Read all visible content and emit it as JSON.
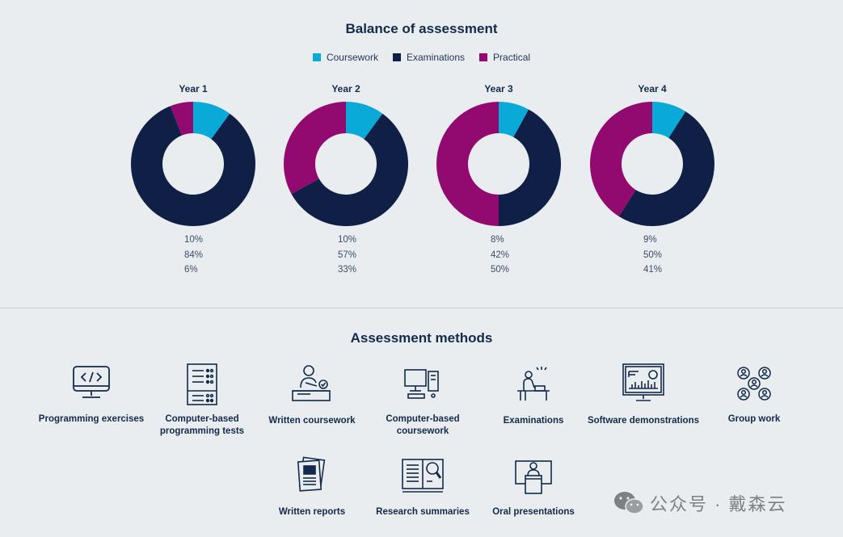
{
  "chart_data": {
    "type": "pie",
    "title": "Balance of assessment",
    "legend": [
      {
        "label": "Coursework",
        "color": "#0aaad8"
      },
      {
        "label": "Examinations",
        "color": "#0f1f45"
      },
      {
        "label": "Practical",
        "color": "#92096f"
      }
    ],
    "charts": [
      {
        "label": "Year 1",
        "values": [
          10,
          84,
          6
        ],
        "value_labels": [
          "10%",
          "84%",
          "6%"
        ]
      },
      {
        "label": "Year 2",
        "values": [
          10,
          57,
          33
        ],
        "value_labels": [
          "10%",
          "57%",
          "33%"
        ]
      },
      {
        "label": "Year 3",
        "values": [
          8,
          42,
          50
        ],
        "value_labels": [
          "8%",
          "42%",
          "50%"
        ]
      },
      {
        "label": "Year 4",
        "values": [
          9,
          50,
          41
        ],
        "value_labels": [
          "9%",
          "50%",
          "41%"
        ]
      }
    ]
  },
  "methods": {
    "title": "Assessment methods",
    "items": [
      {
        "label": "Programming exercises",
        "icon": "laptop-code-icon"
      },
      {
        "label": "Computer-based programming tests",
        "icon": "checklist-icon"
      },
      {
        "label": "Written coursework",
        "icon": "person-writing-icon"
      },
      {
        "label": "Computer-based coursework",
        "icon": "desktop-computer-icon"
      },
      {
        "label": "Examinations",
        "icon": "exam-desk-icon"
      },
      {
        "label": "Software demonstrations",
        "icon": "monitor-chart-icon"
      },
      {
        "label": "Group work",
        "icon": "group-network-icon"
      },
      {
        "label": "Written reports",
        "icon": "report-pages-icon"
      },
      {
        "label": "Research summaries",
        "icon": "book-magnifier-icon"
      },
      {
        "label": "Oral presentations",
        "icon": "presenter-podium-icon"
      }
    ]
  },
  "watermark": {
    "text": "公众号 · 戴森云"
  },
  "colors": {
    "background": "#e9edf0",
    "navy": "#132a4a"
  }
}
